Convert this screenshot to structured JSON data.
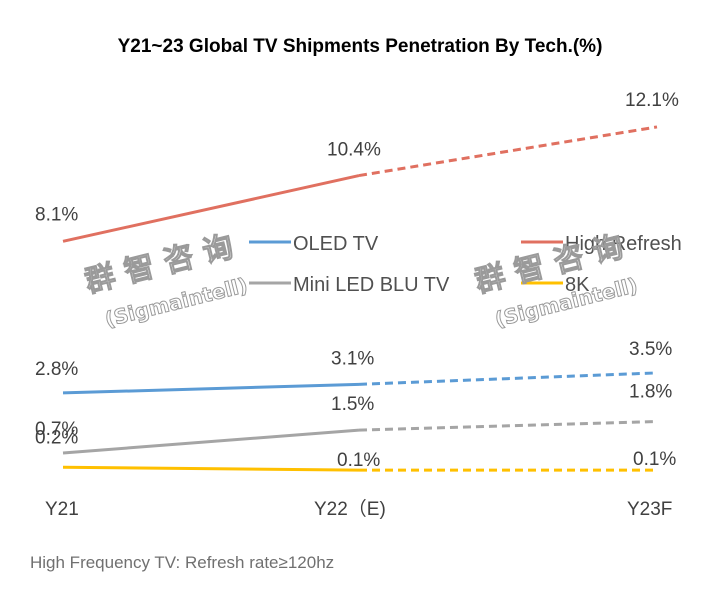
{
  "chart_data": {
    "type": "line",
    "title": "Y21~23 Global TV Shipments Penetration By Tech.(%)",
    "xlabel": "",
    "ylabel": "",
    "categories": [
      "Y21",
      "Y22（E)",
      "Y23F"
    ],
    "ylim": [
      0,
      12.5
    ],
    "grid": false,
    "legend_position": "center",
    "forecast_dashed_from_index": 1,
    "series": [
      {
        "name": "OLED TV",
        "color": "#5B9BD5",
        "values": [
          2.8,
          3.1,
          3.5
        ],
        "labels": [
          "2.8%",
          "3.1%",
          "3.5%"
        ]
      },
      {
        "name": "High Refresh",
        "color": "#E07060",
        "values": [
          8.1,
          10.4,
          12.1
        ],
        "labels": [
          "8.1%",
          "10.4%",
          "12.1%"
        ]
      },
      {
        "name": "Mini LED BLU TV",
        "color": "#A5A5A5",
        "values": [
          0.7,
          1.5,
          1.8
        ],
        "labels": [
          "0.7%",
          "1.5%",
          "1.8%"
        ]
      },
      {
        "name": "8K",
        "color": "#FFC000",
        "values": [
          0.2,
          0.1,
          0.1
        ],
        "labels": [
          "0.2%",
          "0.1%",
          "0.1%"
        ]
      }
    ],
    "annotations": [
      "High Frequency TV:  Refresh rate≥120hz"
    ]
  },
  "watermark": {
    "cn": "群 智 咨 询",
    "en": "(Sigmaintell)"
  }
}
